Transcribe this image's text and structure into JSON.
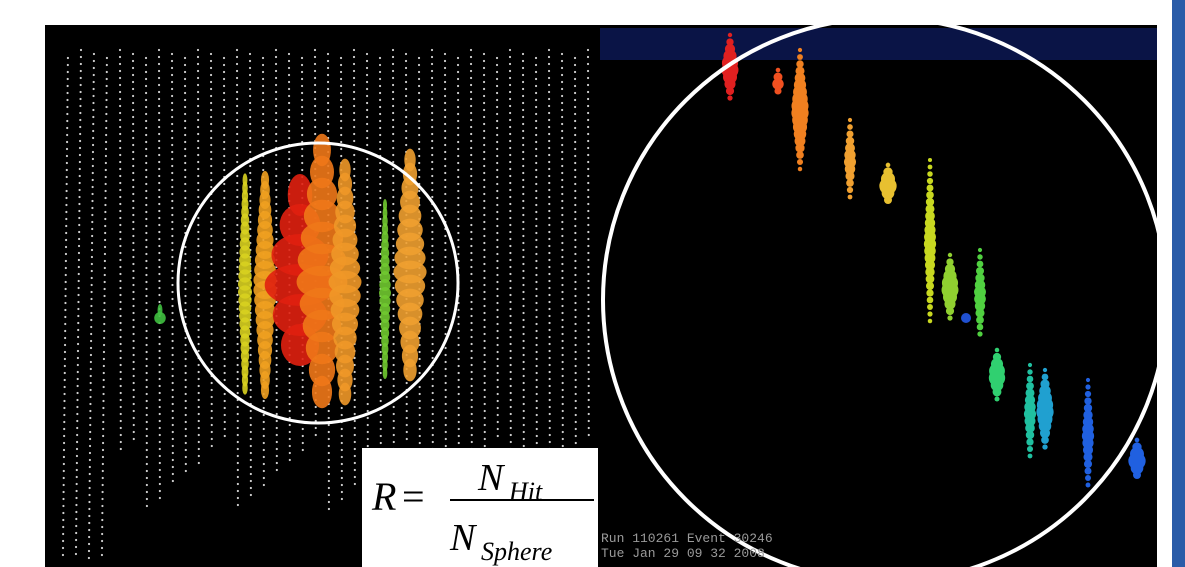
{
  "formula": {
    "lhs": "R",
    "eq": "=",
    "numerator": "N",
    "numerator_sub": "Hit",
    "denominator": "N",
    "denominator_sub": "Sphere"
  },
  "run_label": "Run 110261 Event 30246",
  "date_label": "Tue Jan 29 09 32 2008"
}
